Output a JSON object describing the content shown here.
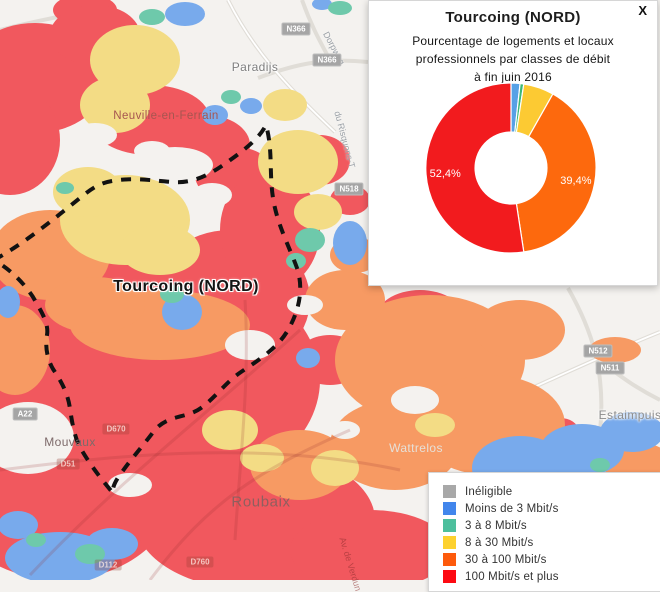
{
  "panel": {
    "title": "Tourcoing (NORD)",
    "subtitle_lines": [
      "Pourcentage de logements et locaux",
      "professionnels par classes de débit",
      "à fin juin 2016"
    ],
    "close_label": "X"
  },
  "chart_data": {
    "type": "pie",
    "donut": true,
    "title": "Tourcoing (NORD)",
    "subtitle": "Pourcentage de logements et locaux professionnels par classes de débit à fin juin 2016",
    "label_color": "#ffffff",
    "slices": [
      {
        "label": "Moins de 3 Mbit/s",
        "value": 1.7,
        "color": "#57a1e6",
        "display": ""
      },
      {
        "label": "3 à 8 Mbit/s",
        "value": 0.7,
        "color": "#3bb877",
        "display": ""
      },
      {
        "label": "8 à 30 Mbit/s",
        "value": 5.8,
        "color": "#fcca33",
        "display": ""
      },
      {
        "label": "30 à 100 Mbit/s",
        "value": 39.4,
        "color": "#fd690d",
        "display": "39,4%"
      },
      {
        "label": "100 Mbit/s et plus",
        "value": 52.4,
        "color": "#f21b1e",
        "display": "52,4%"
      }
    ]
  },
  "legend": {
    "items": [
      {
        "label": "Inéligible",
        "color": "#a8a8a8"
      },
      {
        "label": "Moins de 3 Mbit/s",
        "color": "#4286ec"
      },
      {
        "label": "3 à 8 Mbit/s",
        "color": "#4dbf9d"
      },
      {
        "label": "8 à 30 Mbit/s",
        "color": "#fdd12f"
      },
      {
        "label": "30 à 100 Mbit/s",
        "color": "#fd5a0c"
      },
      {
        "label": "100 Mbit/s et plus",
        "color": "#fd0a12"
      }
    ]
  },
  "map": {
    "region_label": "Tourcoing (NORD)",
    "places": [
      {
        "text": "Paradijs"
      },
      {
        "text": "Neuville-en-Ferrain"
      },
      {
        "text": "Mouvaux"
      },
      {
        "text": "Roubaix"
      },
      {
        "text": "Wattrelos"
      },
      {
        "text": "Estaimpuis"
      }
    ],
    "badges": [
      {
        "text": "N366"
      },
      {
        "text": "N366"
      },
      {
        "text": "N518"
      },
      {
        "text": "N512"
      },
      {
        "text": "N511"
      },
      {
        "text": "A22"
      },
      {
        "text": "D670"
      },
      {
        "text": "D51"
      },
      {
        "text": "D760"
      },
      {
        "text": "D112"
      }
    ],
    "streets": [
      {
        "text": "Dorpweg"
      },
      {
        "text": "du Risquons-T"
      },
      {
        "text": "Av. de Verdun"
      }
    ]
  }
}
